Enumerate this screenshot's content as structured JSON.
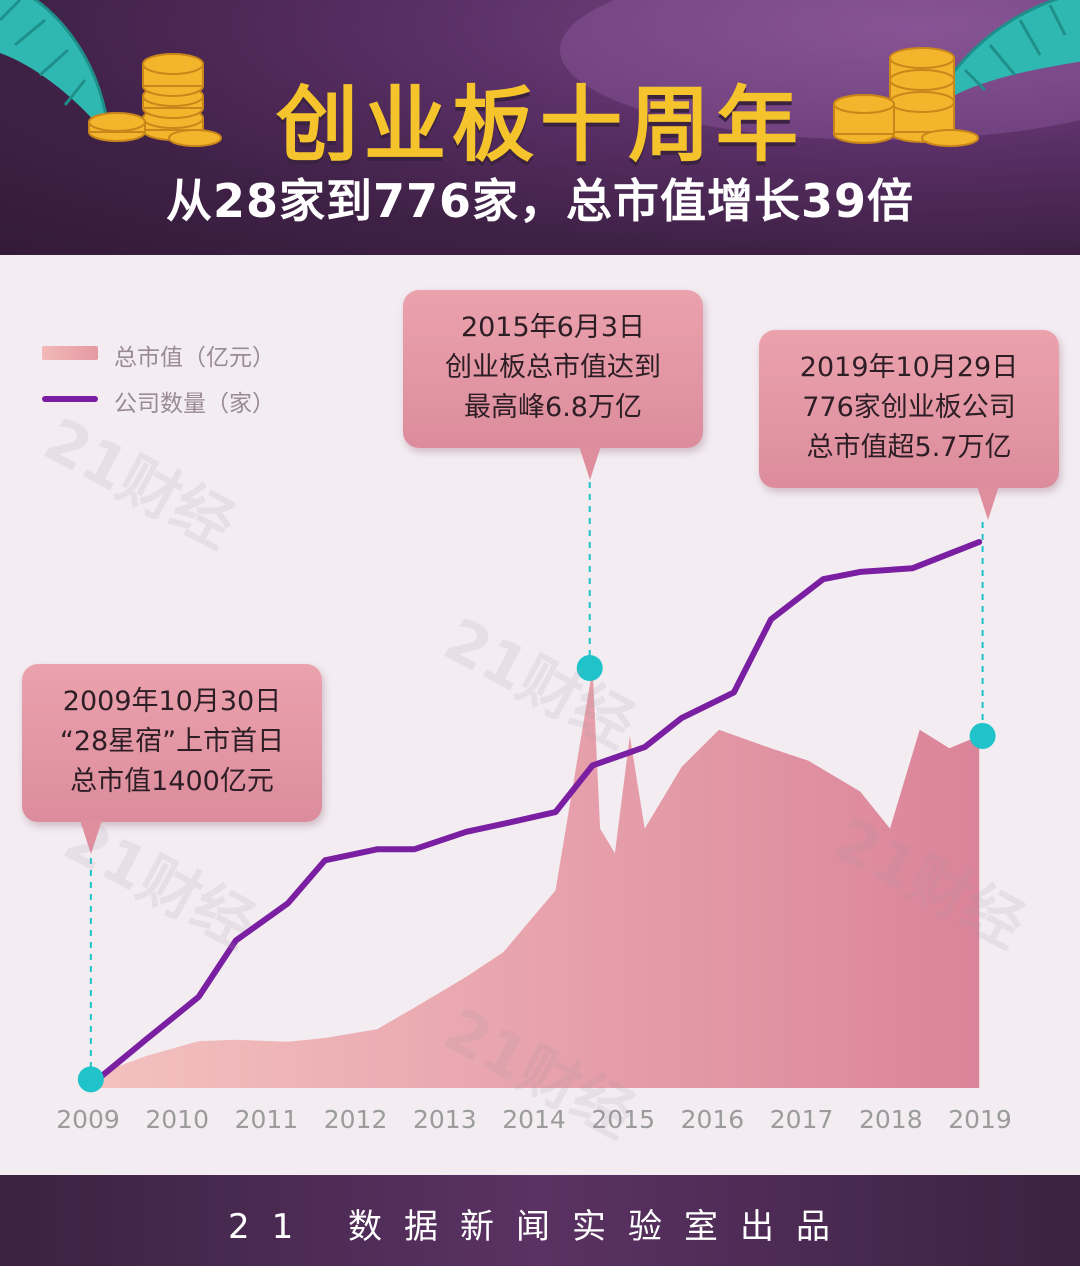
{
  "header": {
    "title": "创业板十周年",
    "subtitle": "从28家到776家，总市值增长39倍"
  },
  "legend": {
    "area_label": "总市值（亿元）",
    "line_label": "公司数量（家）"
  },
  "callouts": [
    {
      "lines": [
        "2009年10月30日",
        "“28星宿”上市首日",
        "总市值1400亿元"
      ]
    },
    {
      "lines": [
        "2015年6月3日",
        "创业板总市值达到",
        "最高峰6.8万亿"
      ]
    },
    {
      "lines": [
        "2019年10月29日",
        "776家创业板公司",
        "总市值超5.7万亿"
      ]
    }
  ],
  "footer": {
    "text": "21 数据新闻实验室出品"
  },
  "watermark": "21财经",
  "colors": {
    "area_light": "#f4c2c0",
    "area_dark": "#db8499",
    "line": "#7b1fa2",
    "marker": "#1fc3c9",
    "title": "#f5c42c"
  },
  "chart_data": {
    "type": "area",
    "x_ticks": [
      "2009",
      "2010",
      "2011",
      "2012",
      "2013",
      "2014",
      "2015",
      "2016",
      "2017",
      "2018",
      "2019"
    ],
    "series": [
      {
        "name": "总市值（亿元）",
        "type": "area",
        "points": [
          [
            "2009-10",
            1400
          ],
          [
            "2010-01",
            3000
          ],
          [
            "2010-06",
            5200
          ],
          [
            "2011-01",
            7600
          ],
          [
            "2011-06",
            7800
          ],
          [
            "2012-01",
            7500
          ],
          [
            "2012-06",
            8100
          ],
          [
            "2013-01",
            9500
          ],
          [
            "2013-06",
            13000
          ],
          [
            "2014-01",
            18000
          ],
          [
            "2014-06",
            22000
          ],
          [
            "2015-01",
            32000
          ],
          [
            "2015-06",
            68000
          ],
          [
            "2015-07",
            42000
          ],
          [
            "2015-09",
            38000
          ],
          [
            "2015-11",
            57000
          ],
          [
            "2016-01",
            42000
          ],
          [
            "2016-06",
            52000
          ],
          [
            "2016-11",
            58000
          ],
          [
            "2017-06",
            55000
          ],
          [
            "2017-11",
            53000
          ],
          [
            "2018-06",
            48000
          ],
          [
            "2018-10",
            42000
          ],
          [
            "2019-02",
            58000
          ],
          [
            "2019-06",
            55000
          ],
          [
            "2019-10",
            57000
          ]
        ]
      },
      {
        "name": "公司数量（家）",
        "type": "line",
        "points": [
          [
            "2009-10",
            28
          ],
          [
            "2010-06",
            95
          ],
          [
            "2011-01",
            153
          ],
          [
            "2011-06",
            230
          ],
          [
            "2012-01",
            281
          ],
          [
            "2012-06",
            340
          ],
          [
            "2013-01",
            355
          ],
          [
            "2013-06",
            355
          ],
          [
            "2014-01",
            379
          ],
          [
            "2014-06",
            390
          ],
          [
            "2015-01",
            406
          ],
          [
            "2015-06",
            470
          ],
          [
            "2016-01",
            495
          ],
          [
            "2016-06",
            535
          ],
          [
            "2017-01",
            570
          ],
          [
            "2017-06",
            670
          ],
          [
            "2018-01",
            725
          ],
          [
            "2018-06",
            735
          ],
          [
            "2019-01",
            740
          ],
          [
            "2019-06",
            760
          ],
          [
            "2019-10",
            776
          ]
        ]
      }
    ],
    "highlights": [
      {
        "date": "2009-10-30",
        "value": 1400
      },
      {
        "date": "2015-06-03",
        "value": 68000
      },
      {
        "date": "2019-10-29",
        "value": 57000
      }
    ]
  }
}
